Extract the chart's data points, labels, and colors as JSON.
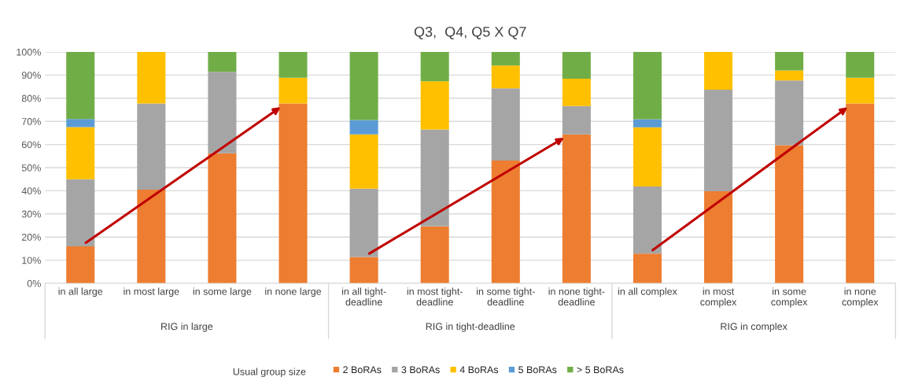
{
  "chart_data": {
    "type": "bar",
    "stacked": true,
    "title": "Q3,  Q4, Q5 X Q7",
    "legend_title": "Usual group size",
    "legend": "bottom",
    "grid": "y",
    "categories": [
      "in all large",
      "in most large",
      "in some large",
      "in none large",
      "in all tight-deadline",
      "in most tight-deadline",
      "in some tight-deadline",
      "in none tight-deadline",
      "in all complex",
      "in most complex",
      "in some complex",
      "in none complex"
    ],
    "annotations": [
      "RIG in large",
      "RIG in tight-deadline",
      "RIG in complex"
    ],
    "ylim": [
      0,
      100
    ],
    "yticks": [
      {
        "value": 0,
        "label": "0%"
      },
      {
        "value": 10,
        "label": "10%"
      },
      {
        "value": 20,
        "label": "20%"
      },
      {
        "value": 30,
        "label": "30%"
      },
      {
        "value": 40,
        "label": "40%"
      },
      {
        "value": 50,
        "label": "50%"
      },
      {
        "value": 60,
        "label": "60%"
      },
      {
        "value": 70,
        "label": "70%"
      },
      {
        "value": 80,
        "label": "80%"
      },
      {
        "value": 90,
        "label": "90%"
      },
      {
        "value": 100,
        "label": "100%"
      }
    ],
    "series": [
      {
        "name": "2 BoRAs",
        "color": "#ed7d31",
        "values": [
          16,
          40.5,
          56.2,
          77.7,
          11.4,
          24.7,
          53.1,
          64.4,
          12.8,
          39.8,
          59.7,
          77.7
        ]
      },
      {
        "name": "3 BoRAs",
        "color": "#a5a5a5",
        "values": [
          29,
          37.2,
          35.2,
          null,
          29.5,
          41.8,
          31.2,
          12.2,
          29,
          43.9,
          28,
          null
        ]
      },
      {
        "name": "4 BoRAs",
        "color": "#ffc000",
        "values": [
          22.5,
          22.3,
          null,
          11.2,
          23.5,
          20.8,
          9.8,
          11.8,
          25.6,
          16.3,
          4.3,
          11.2
        ]
      },
      {
        "name": "5 BoRAs",
        "color": "#5b9bd5",
        "values": [
          3.5,
          null,
          null,
          null,
          6.2,
          null,
          null,
          null,
          3.5,
          null,
          null,
          null
        ]
      },
      {
        "name": "> 5 BoRAs",
        "color": "#70ad47",
        "values": [
          29,
          null,
          8.6,
          11.1,
          29.4,
          12.7,
          5.9,
          11.6,
          29.1,
          null,
          8,
          11.1
        ]
      }
    ]
  }
}
